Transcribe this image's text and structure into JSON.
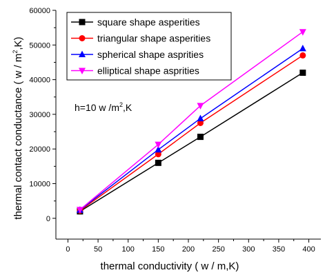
{
  "chart_data": {
    "type": "line",
    "title": "",
    "xlabel": "thermal conductivity ( w / m,K)",
    "ylabel_main": "thermal contact conductance ( w / m",
    "ylabel_sup": "2",
    "ylabel_tail": ",K)",
    "xlim": [
      -20,
      420
    ],
    "ylim": [
      -6000,
      60000
    ],
    "x_ticks": [
      0,
      50,
      100,
      150,
      200,
      250,
      300,
      350,
      400
    ],
    "y_ticks": [
      0,
      10000,
      20000,
      30000,
      40000,
      50000,
      60000
    ],
    "x_tick_labels": [
      "0",
      "50",
      "100",
      "150",
      "200",
      "250",
      "300",
      "350",
      "400"
    ],
    "y_tick_labels": [
      "0",
      "10000",
      "20000",
      "30000",
      "40000",
      "50000",
      "60000"
    ],
    "x": [
      20,
      150,
      220,
      390
    ],
    "legend_position": "top-left",
    "grid": false,
    "annotation": {
      "main": "h=10 w /m",
      "sup": "2",
      "tail": ",K"
    },
    "series": [
      {
        "name": "square shape asperities",
        "values": [
          2000,
          16000,
          23500,
          42000
        ],
        "color": "#000000",
        "marker": "square"
      },
      {
        "name": "triangular shape asperities",
        "values": [
          2200,
          18500,
          27500,
          47000
        ],
        "color": "#ff0000",
        "marker": "circle"
      },
      {
        "name": "spherical shape asprities",
        "values": [
          2400,
          19800,
          28800,
          49000
        ],
        "color": "#0000ff",
        "marker": "triangle-up"
      },
      {
        "name": "elliptical shape asprities",
        "values": [
          2500,
          21300,
          32500,
          53800
        ],
        "color": "#ff00ff",
        "marker": "triangle-down"
      }
    ]
  }
}
